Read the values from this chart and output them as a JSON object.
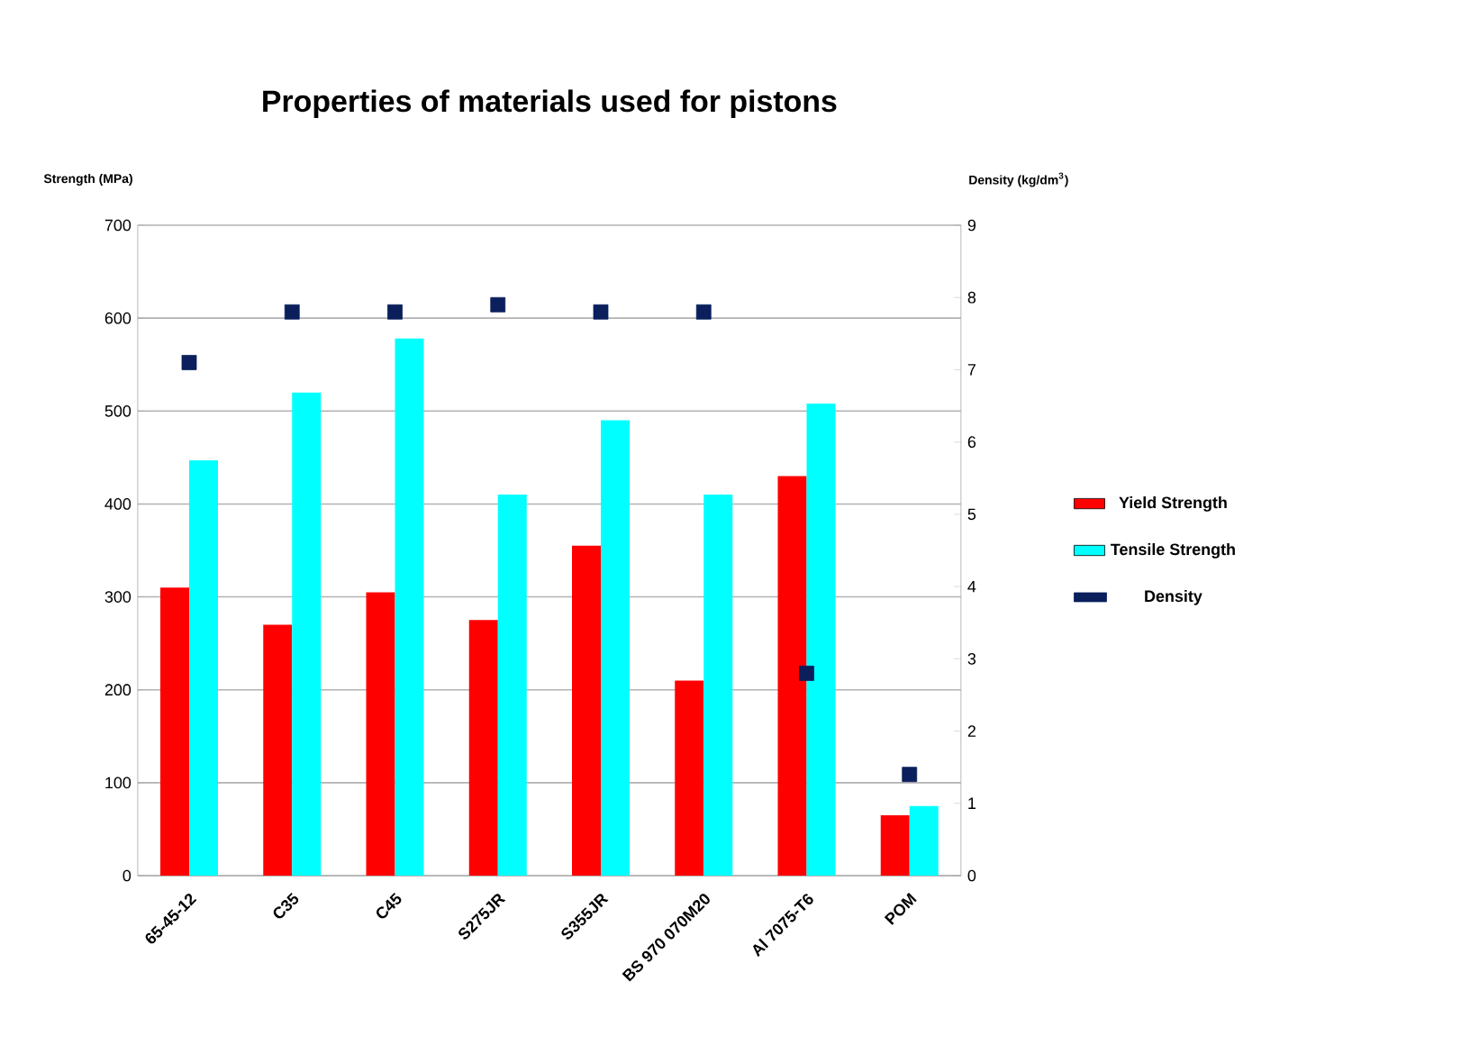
{
  "chart_data": {
    "type": "bar",
    "title": "Properties of materials used for pistons",
    "ylabel": "Strength (MPa)",
    "y2label": "Density (kg/dm$^{3}$)",
    "categories": [
      "65-45-12",
      "C35",
      "C45",
      "S275JR",
      "S355JR",
      "BS 970 070M20",
      "Al 7075-T6",
      "POM"
    ],
    "series": [
      {
        "name": "Yield Strength",
        "color": "#ff0000",
        "values": [
          310,
          270,
          305,
          275,
          355,
          210,
          430,
          65
        ]
      },
      {
        "name": "Tensile Strength",
        "color": "#00ffff",
        "values": [
          447,
          520,
          578,
          410,
          490,
          410,
          508,
          75
        ]
      },
      {
        "name": "Density",
        "color": "#0a1f5c",
        "type": "scatter",
        "axis": "y2",
        "values": [
          7.1,
          7.8,
          7.8,
          7.9,
          7.8,
          7.8,
          2.8,
          1.4
        ]
      }
    ],
    "ylim": [
      0,
      700
    ],
    "yticks": [
      0,
      100,
      200,
      300,
      400,
      500,
      600,
      700
    ],
    "y2lim": [
      0,
      9
    ],
    "y2ticks": [
      0,
      1,
      2,
      3,
      4,
      5,
      6,
      7,
      8,
      9
    ],
    "grid": "y",
    "legend": "right"
  }
}
